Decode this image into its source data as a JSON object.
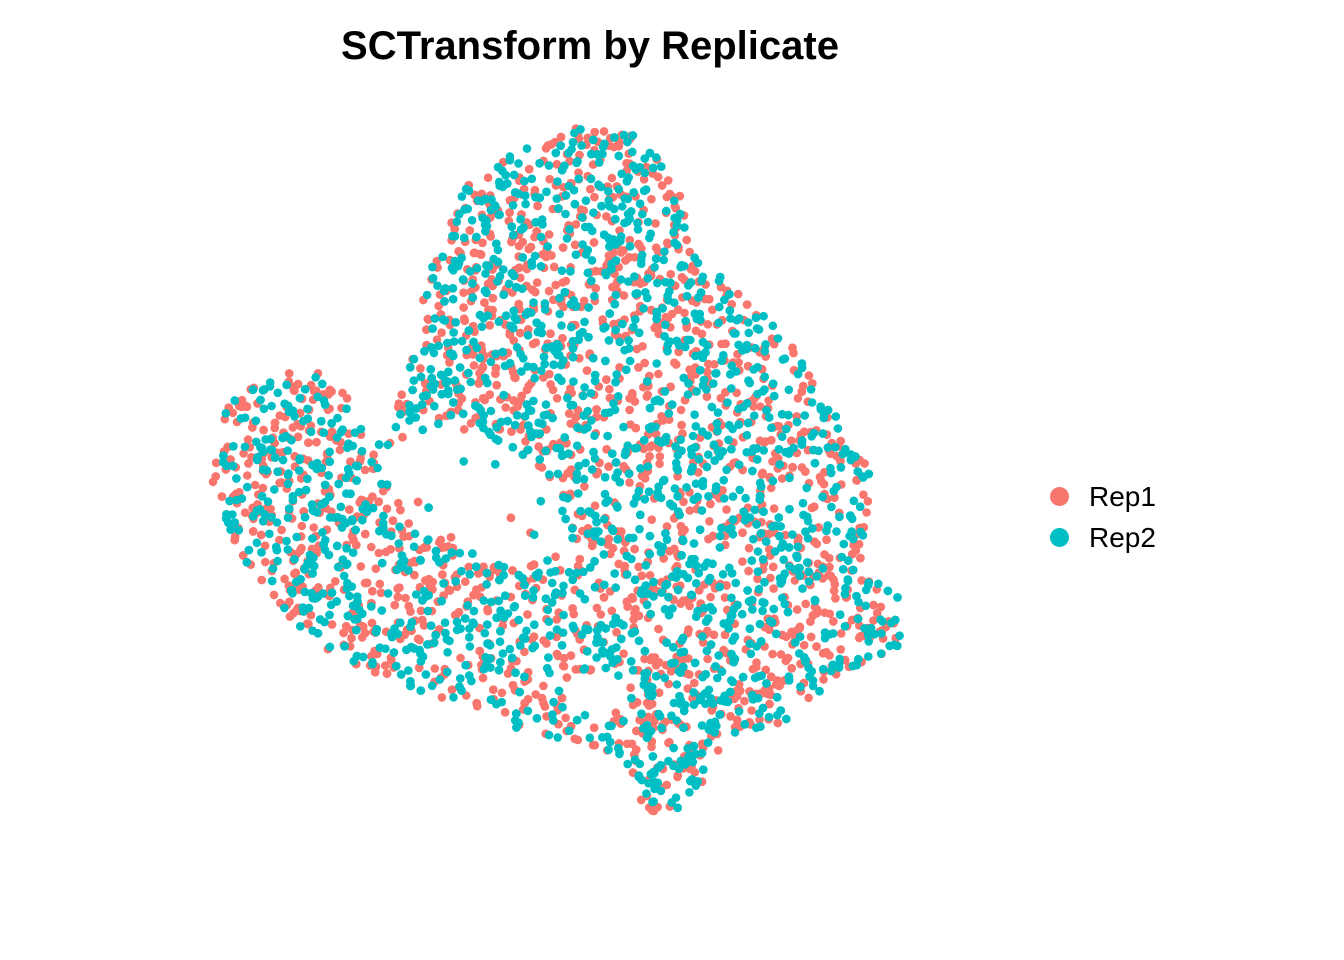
{
  "chart_data": {
    "type": "scatter",
    "title": "SCTransform by Replicate",
    "xlabel": "",
    "ylabel": "",
    "axes_visible": false,
    "grid": false,
    "legend_position": "right",
    "series": [
      {
        "name": "Rep1",
        "color": "#F8766D"
      },
      {
        "name": "Rep2",
        "color": "#00BFC4"
      }
    ],
    "point_cloud": {
      "description_free": true,
      "outline": [
        [
          -6.9,
          0.2
        ],
        [
          -6.6,
          2.1
        ],
        [
          -5.2,
          2.9
        ],
        [
          -4.4,
          2.2
        ],
        [
          -4.0,
          1.0
        ],
        [
          -3.6,
          1.5
        ],
        [
          -3.2,
          3.3
        ],
        [
          -2.8,
          5.4
        ],
        [
          -2.2,
          6.6
        ],
        [
          -1.3,
          7.3
        ],
        [
          -0.2,
          7.8
        ],
        [
          0.8,
          7.6
        ],
        [
          1.6,
          6.8
        ],
        [
          1.8,
          5.2
        ],
        [
          2.6,
          4.5
        ],
        [
          3.6,
          3.4
        ],
        [
          4.5,
          2.0
        ],
        [
          5.1,
          0.6
        ],
        [
          5.0,
          -1.2
        ],
        [
          5.6,
          -1.8
        ],
        [
          5.7,
          -3.0
        ],
        [
          4.6,
          -3.6
        ],
        [
          3.6,
          -4.6
        ],
        [
          2.4,
          -5.1
        ],
        [
          1.8,
          -6.4
        ],
        [
          1.1,
          -6.6
        ],
        [
          0.2,
          -5.2
        ],
        [
          -1.2,
          -4.8
        ],
        [
          -2.6,
          -4.2
        ],
        [
          -4.2,
          -3.6
        ],
        [
          -5.4,
          -2.6
        ],
        [
          -6.2,
          -1.6
        ],
        [
          -6.9,
          0.2
        ]
      ],
      "holes": [
        [
          [
            -3.9,
            0.9
          ],
          [
            -2.4,
            1.7
          ],
          [
            -0.8,
            0.6
          ],
          [
            -0.3,
            -1.0
          ],
          [
            -1.5,
            -1.4
          ],
          [
            -3.2,
            -0.6
          ],
          [
            -3.9,
            0.9
          ]
        ],
        [
          [
            -0.6,
            -3.8
          ],
          [
            0.6,
            -3.4
          ],
          [
            0.8,
            -4.4
          ],
          [
            -0.4,
            -4.5
          ],
          [
            -0.6,
            -3.8
          ]
        ]
      ]
    }
  }
}
